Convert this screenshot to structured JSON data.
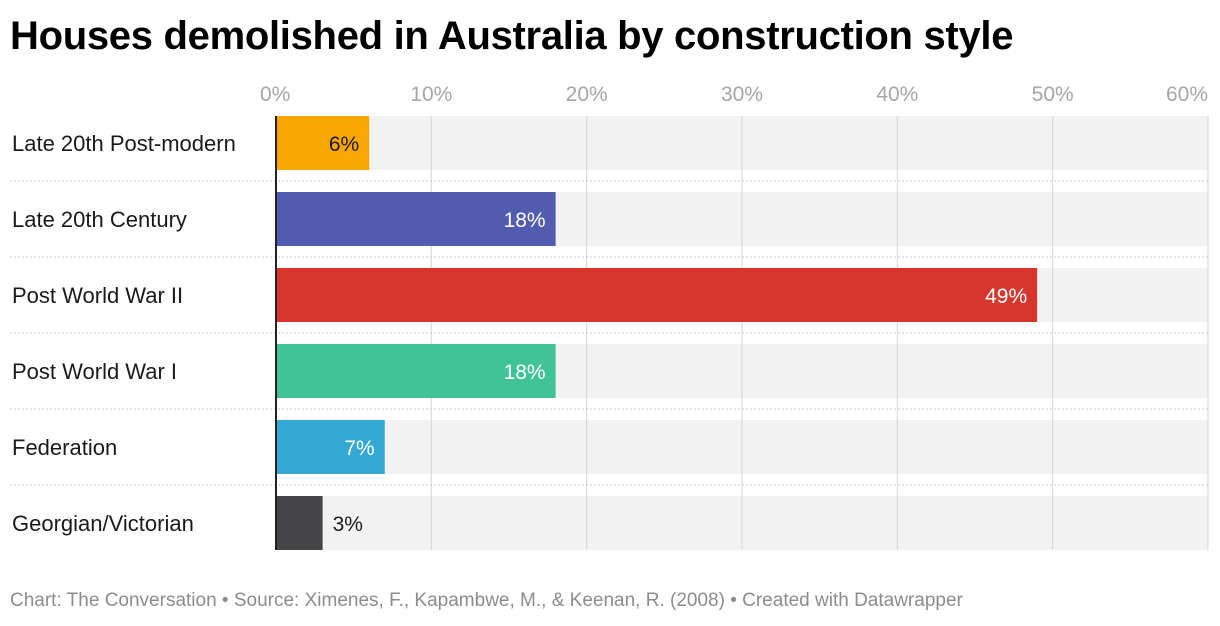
{
  "title": "Houses demolished in Australia by construction style",
  "footer": "Chart: The Conversation • Source: Ximenes, F., Kapambwe, M., & Keenan, R. (2008) • Created with Datawrapper",
  "chart_data": {
    "type": "bar",
    "orientation": "horizontal",
    "categories": [
      "Late 20th Post-modern",
      "Late 20th Century",
      "Post World War II",
      "Post World War I",
      "Federation",
      "Georgian/Victorian"
    ],
    "values": [
      6,
      18,
      49,
      18,
      7,
      3
    ],
    "value_labels": [
      "6%",
      "18%",
      "49%",
      "18%",
      "7%",
      "3%"
    ],
    "colors": [
      "#fba703",
      "#515bb0",
      "#d6362b",
      "#40c396",
      "#35a9d3",
      "#454547"
    ],
    "label_colors": [
      "#1a1a1a",
      "#ffffff",
      "#ffffff",
      "#ffffff",
      "#ffffff",
      "#1a1a1a"
    ],
    "xlim": [
      0,
      60
    ],
    "x_ticks": [
      0,
      10,
      20,
      30,
      40,
      50,
      60
    ],
    "x_tick_labels": [
      "0%",
      "10%",
      "20%",
      "30%",
      "40%",
      "50%",
      "60%"
    ],
    "axis_position": "top",
    "grid": true,
    "background_track_color": "#f2f2f2"
  }
}
